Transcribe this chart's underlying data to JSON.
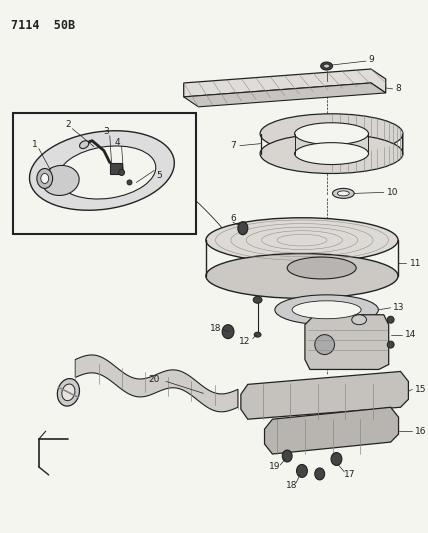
{
  "title": "7114  50B",
  "bg": "#f5f5f0",
  "fg": "#222222",
  "gray1": "#aaaaaa",
  "gray2": "#cccccc",
  "gray3": "#888888",
  "dark": "#444444",
  "figsize": [
    4.28,
    5.33
  ],
  "dpi": 100
}
